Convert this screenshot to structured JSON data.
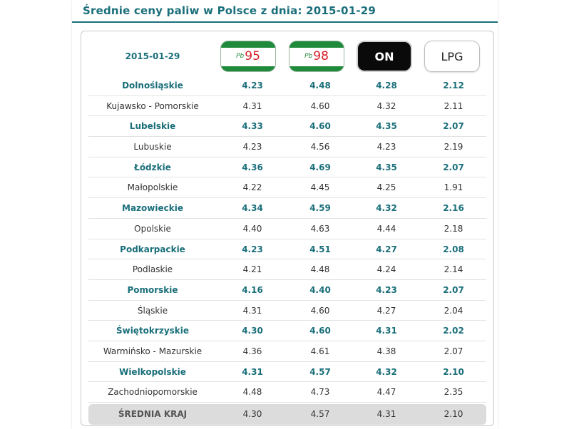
{
  "title": "Średnie ceny paliw w Polsce z dnia: 2015-01-29",
  "header": {
    "date": "2015-01-29",
    "fuels": [
      {
        "prefix": "Pb",
        "label": "95"
      },
      {
        "prefix": "Pb",
        "label": "98"
      },
      {
        "label": "ON"
      },
      {
        "label": "LPG"
      }
    ]
  },
  "rows": [
    {
      "name": "Dolnośląskie",
      "pb95": "4.23",
      "pb98": "4.48",
      "on": "4.28",
      "lpg": "2.12"
    },
    {
      "name": "Kujawsko - Pomorskie",
      "pb95": "4.31",
      "pb98": "4.60",
      "on": "4.32",
      "lpg": "2.11"
    },
    {
      "name": "Lubelskie",
      "pb95": "4.33",
      "pb98": "4.60",
      "on": "4.35",
      "lpg": "2.07"
    },
    {
      "name": "Lubuskie",
      "pb95": "4.23",
      "pb98": "4.56",
      "on": "4.23",
      "lpg": "2.19"
    },
    {
      "name": "Łódzkie",
      "pb95": "4.36",
      "pb98": "4.69",
      "on": "4.35",
      "lpg": "2.07"
    },
    {
      "name": "Małopolskie",
      "pb95": "4.22",
      "pb98": "4.45",
      "on": "4.25",
      "lpg": "1.91"
    },
    {
      "name": "Mazowieckie",
      "pb95": "4.34",
      "pb98": "4.59",
      "on": "4.32",
      "lpg": "2.16"
    },
    {
      "name": "Opolskie",
      "pb95": "4.40",
      "pb98": "4.63",
      "on": "4.44",
      "lpg": "2.18"
    },
    {
      "name": "Podkarpackie",
      "pb95": "4.23",
      "pb98": "4.51",
      "on": "4.27",
      "lpg": "2.08"
    },
    {
      "name": "Podlaskie",
      "pb95": "4.21",
      "pb98": "4.48",
      "on": "4.24",
      "lpg": "2.14"
    },
    {
      "name": "Pomorskie",
      "pb95": "4.16",
      "pb98": "4.40",
      "on": "4.23",
      "lpg": "2.07"
    },
    {
      "name": "Śląskie",
      "pb95": "4.31",
      "pb98": "4.60",
      "on": "4.27",
      "lpg": "2.04"
    },
    {
      "name": "Świętokrzyskie",
      "pb95": "4.30",
      "pb98": "4.60",
      "on": "4.31",
      "lpg": "2.02"
    },
    {
      "name": "Warmińsko - Mazurskie",
      "pb95": "4.36",
      "pb98": "4.61",
      "on": "4.38",
      "lpg": "2.07"
    },
    {
      "name": "Wielkopolskie",
      "pb95": "4.31",
      "pb98": "4.57",
      "on": "4.32",
      "lpg": "2.10"
    },
    {
      "name": "Zachodniopomorskie",
      "pb95": "4.48",
      "pb98": "4.73",
      "on": "4.47",
      "lpg": "2.35"
    }
  ],
  "average": {
    "name": "ŚREDNIA KRAJ",
    "pb95": "4.30",
    "pb98": "4.57",
    "on": "4.31",
    "lpg": "2.10"
  }
}
